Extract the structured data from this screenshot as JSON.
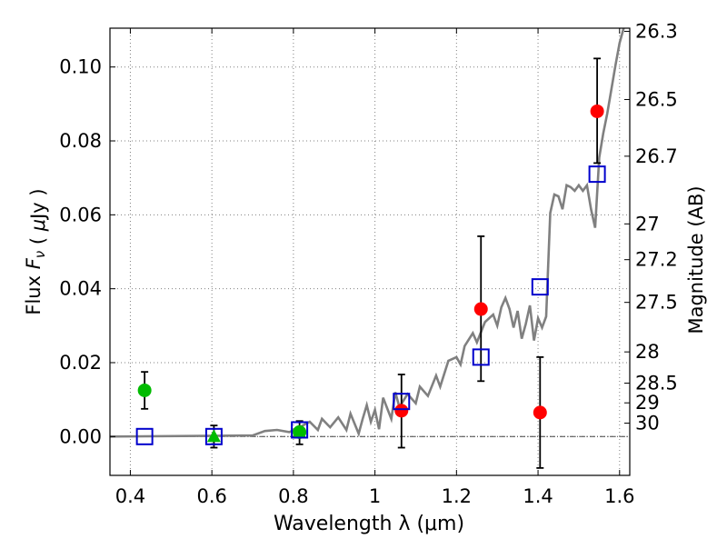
{
  "chart_data": {
    "type": "scatter",
    "xlabel": "Wavelength  λ (μm)",
    "ylabel": "Flux  Fν  ( μJy )",
    "y2label": "Magnitude (AB)",
    "xlim": [
      0.35,
      1.625
    ],
    "ylim": [
      -0.0105,
      0.1105
    ],
    "xticks": [
      {
        "value": 0.4,
        "label": "0.4"
      },
      {
        "value": 0.6,
        "label": "0.6"
      },
      {
        "value": 0.8,
        "label": "0.8"
      },
      {
        "value": 1.0,
        "label": "1"
      },
      {
        "value": 1.2,
        "label": "1.2"
      },
      {
        "value": 1.4,
        "label": "1.4"
      },
      {
        "value": 1.6,
        "label": "1.6"
      }
    ],
    "yticks": [
      {
        "value": 0.0,
        "label": "0.00"
      },
      {
        "value": 0.02,
        "label": "0.02"
      },
      {
        "value": 0.04,
        "label": "0.04"
      },
      {
        "value": 0.06,
        "label": "0.06"
      },
      {
        "value": 0.08,
        "label": "0.08"
      },
      {
        "value": 0.1,
        "label": "0.10"
      }
    ],
    "y2ticks": [
      {
        "mag": 26.3,
        "label": "26.3"
      },
      {
        "mag": 26.5,
        "label": "26.5"
      },
      {
        "mag": 26.7,
        "label": "26.7"
      },
      {
        "mag": 27.0,
        "label": "27"
      },
      {
        "mag": 27.2,
        "label": "27.2"
      },
      {
        "mag": 27.5,
        "label": "27.5"
      },
      {
        "mag": 28.0,
        "label": "28"
      },
      {
        "mag": 28.5,
        "label": "28.5"
      },
      {
        "mag": 29.0,
        "label": "29"
      },
      {
        "mag": 30.0,
        "label": "30"
      }
    ],
    "grid": true,
    "zero_line": true,
    "colors": {
      "model": "#808080",
      "red": "#ff0000",
      "green": "#00bb00",
      "blue_square": "#0000cc",
      "errorbar": "#000000",
      "grid": "#808080"
    },
    "model_sed": [
      [
        0.35,
        0.0
      ],
      [
        0.7,
        0.0003
      ],
      [
        0.73,
        0.0015
      ],
      [
        0.76,
        0.0018
      ],
      [
        0.79,
        0.0012
      ],
      [
        0.82,
        0.0028
      ],
      [
        0.84,
        0.004
      ],
      [
        0.86,
        0.0018
      ],
      [
        0.87,
        0.0048
      ],
      [
        0.89,
        0.0025
      ],
      [
        0.91,
        0.0052
      ],
      [
        0.93,
        0.0018
      ],
      [
        0.94,
        0.0062
      ],
      [
        0.96,
        0.0008
      ],
      [
        0.97,
        0.0048
      ],
      [
        0.98,
        0.0085
      ],
      [
        0.99,
        0.004
      ],
      [
        1.0,
        0.0072
      ],
      [
        1.01,
        0.002
      ],
      [
        1.02,
        0.0105
      ],
      [
        1.04,
        0.0048
      ],
      [
        1.05,
        0.012
      ],
      [
        1.06,
        0.008
      ],
      [
        1.08,
        0.0115
      ],
      [
        1.1,
        0.009
      ],
      [
        1.11,
        0.0135
      ],
      [
        1.13,
        0.011
      ],
      [
        1.15,
        0.0165
      ],
      [
        1.16,
        0.0135
      ],
      [
        1.18,
        0.0205
      ],
      [
        1.2,
        0.0215
      ],
      [
        1.21,
        0.0195
      ],
      [
        1.22,
        0.0245
      ],
      [
        1.24,
        0.028
      ],
      [
        1.25,
        0.0255
      ],
      [
        1.27,
        0.031
      ],
      [
        1.29,
        0.033
      ],
      [
        1.3,
        0.03
      ],
      [
        1.31,
        0.035
      ],
      [
        1.32,
        0.0375
      ],
      [
        1.33,
        0.0345
      ],
      [
        1.34,
        0.0295
      ],
      [
        1.35,
        0.034
      ],
      [
        1.36,
        0.0265
      ],
      [
        1.37,
        0.0305
      ],
      [
        1.38,
        0.0355
      ],
      [
        1.39,
        0.026
      ],
      [
        1.4,
        0.032
      ],
      [
        1.41,
        0.0295
      ],
      [
        1.42,
        0.0325
      ],
      [
        1.43,
        0.0605
      ],
      [
        1.44,
        0.0655
      ],
      [
        1.45,
        0.065
      ],
      [
        1.46,
        0.0615
      ],
      [
        1.47,
        0.068
      ],
      [
        1.48,
        0.0675
      ],
      [
        1.49,
        0.0665
      ],
      [
        1.5,
        0.068
      ],
      [
        1.51,
        0.0665
      ],
      [
        1.52,
        0.068
      ],
      [
        1.53,
        0.0615
      ],
      [
        1.54,
        0.0565
      ],
      [
        1.55,
        0.0755
      ],
      [
        1.56,
        0.082
      ],
      [
        1.57,
        0.0875
      ],
      [
        1.58,
        0.094
      ],
      [
        1.59,
        0.1005
      ],
      [
        1.6,
        0.1065
      ],
      [
        1.61,
        0.1105
      ]
    ],
    "series": [
      {
        "color": "red",
        "marker": "circle",
        "points": [
          {
            "x": 1.065,
            "y": 0.007,
            "yerr_low": 0.01,
            "yerr_high": 0.0098
          },
          {
            "x": 1.26,
            "y": 0.0345,
            "yerr_low": 0.0195,
            "yerr_high": 0.0197
          },
          {
            "x": 1.405,
            "y": 0.0065,
            "yerr_low": 0.015,
            "yerr_high": 0.015
          },
          {
            "x": 1.545,
            "y": 0.088,
            "yerr_low": 0.014,
            "yerr_high": 0.0143
          }
        ]
      },
      {
        "color": "green",
        "marker": "circle",
        "points": [
          {
            "x": 0.435,
            "y": 0.0125,
            "yerr_low": 0.005,
            "yerr_high": 0.005
          },
          {
            "x": 0.815,
            "y": 0.0012,
            "yerr_low": 0.0033,
            "yerr_high": 0.003
          }
        ]
      },
      {
        "color": "green",
        "marker": "triangle",
        "points": [
          {
            "x": 0.605,
            "y": 0.0,
            "yerr_low": 0.003,
            "yerr_high": 0.003
          }
        ]
      },
      {
        "color": "blue_square",
        "marker": "square-open",
        "points": [
          {
            "x": 0.435,
            "y": 0.0
          },
          {
            "x": 0.605,
            "y": 0.0
          },
          {
            "x": 0.815,
            "y": 0.0018
          },
          {
            "x": 1.065,
            "y": 0.0095
          },
          {
            "x": 1.26,
            "y": 0.0215
          },
          {
            "x": 1.405,
            "y": 0.0405
          },
          {
            "x": 1.545,
            "y": 0.071
          }
        ]
      }
    ]
  }
}
